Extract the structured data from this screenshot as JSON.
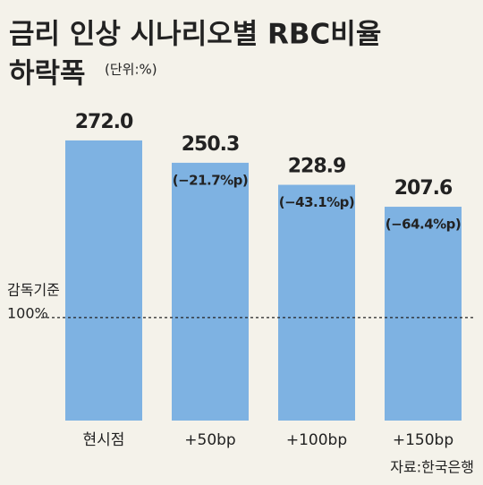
{
  "chart_data": {
    "type": "bar",
    "title": "금리 인상 시나리오별 RBC비율",
    "title_line2": "하락폭",
    "unit": "(단위:%)",
    "categories": [
      "현시점",
      "+50bp",
      "+100bp",
      "+150bp"
    ],
    "values": [
      272.0,
      250.3,
      228.9,
      207.6
    ],
    "value_labels": [
      "272.0",
      "250.3",
      "228.9",
      "207.6"
    ],
    "change_labels": [
      null,
      "(−21.7%p)",
      "(−43.1%p)",
      "(−64.4%p)"
    ],
    "color": "#7eb2e2",
    "reference_line": {
      "name": "감독기준",
      "value": 100,
      "label": "100%"
    },
    "source": "자료:한국은행"
  }
}
